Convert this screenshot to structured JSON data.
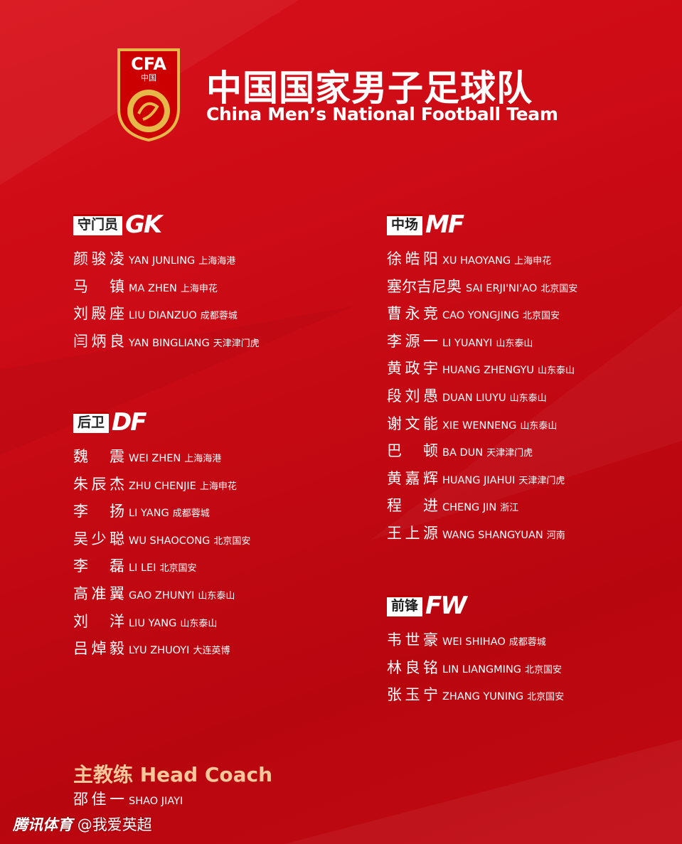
{
  "header": {
    "logo_text": "CFA 中国",
    "title_cn": "中国国家男子足球队",
    "title_en": "China Men’s National Football Team"
  },
  "sections": {
    "gk": {
      "label": "守门员",
      "abbr": "GK",
      "players": [
        {
          "cn": "颜骏凌",
          "py": "YAN JUNLING",
          "club": "上海海港"
        },
        {
          "cn": "马镇",
          "py": "MA ZHEN",
          "club": "上海申花"
        },
        {
          "cn": "刘殿座",
          "py": "LIU DIANZUO",
          "club": "成都蓉城"
        },
        {
          "cn": "闫炳良",
          "py": "YAN BINGLIANG",
          "club": "天津津门虎"
        }
      ]
    },
    "df": {
      "label": "后卫",
      "abbr": "DF",
      "players": [
        {
          "cn": "魏震",
          "py": "WEI ZHEN",
          "club": "上海海港"
        },
        {
          "cn": "朱辰杰",
          "py": "ZHU CHENJIE",
          "club": "上海申花"
        },
        {
          "cn": "李扬",
          "py": "LI YANG",
          "club": "成都蓉城"
        },
        {
          "cn": "吴少聪",
          "py": "WU SHAOCONG",
          "club": "北京国安"
        },
        {
          "cn": "李磊",
          "py": "LI LEI",
          "club": "北京国安"
        },
        {
          "cn": "高准翼",
          "py": "GAO ZHUNYI",
          "club": "山东泰山"
        },
        {
          "cn": "刘洋",
          "py": "LIU YANG",
          "club": "山东泰山"
        },
        {
          "cn": "吕焯毅",
          "py": "LYU ZHUOYI",
          "club": "大连英博"
        }
      ]
    },
    "mf": {
      "label": "中场",
      "abbr": "MF",
      "players": [
        {
          "cn": "徐皓阳",
          "py": "XU HAOYANG",
          "club": "上海申花"
        },
        {
          "cn": "塞尔吉尼奥",
          "py": "SAI ERJI'NI'AO",
          "club": "北京国安"
        },
        {
          "cn": "曹永竞",
          "py": "CAO YONGJING",
          "club": "北京国安"
        },
        {
          "cn": "李源一",
          "py": "LI YUANYI",
          "club": "山东泰山"
        },
        {
          "cn": "黄政宇",
          "py": "HUANG ZHENGYU",
          "club": "山东泰山"
        },
        {
          "cn": "段刘愚",
          "py": "DUAN LIUYU",
          "club": "山东泰山"
        },
        {
          "cn": "谢文能",
          "py": "XIE WENNENG",
          "club": "山东泰山"
        },
        {
          "cn": "巴顿",
          "py": "BA DUN",
          "club": "天津津门虎"
        },
        {
          "cn": "黄嘉辉",
          "py": "HUANG JIAHUI",
          "club": "天津津门虎"
        },
        {
          "cn": "程进",
          "py": "CHENG JIN",
          "club": "浙江"
        },
        {
          "cn": "王上源",
          "py": "WANG SHANGYUAN",
          "club": "河南"
        }
      ]
    },
    "fw": {
      "label": "前锋",
      "abbr": "FW",
      "players": [
        {
          "cn": "韦世豪",
          "py": "WEI SHIHAO",
          "club": "成都蓉城"
        },
        {
          "cn": "林良铭",
          "py": "LIN LIANGMING",
          "club": "北京国安"
        },
        {
          "cn": "张玉宁",
          "py": "ZHANG YUNING",
          "club": "北京国安"
        }
      ]
    }
  },
  "coach": {
    "title": "主教练 Head Coach",
    "cn": "邵佳一",
    "py": "SHAO JIAYI"
  },
  "watermark": {
    "brand": "腾讯体育",
    "handle": "@我爱英超"
  },
  "colors": {
    "background": "#c80a14",
    "coach_title": "#f6c79a",
    "logo_gold": "#e6b84a"
  }
}
